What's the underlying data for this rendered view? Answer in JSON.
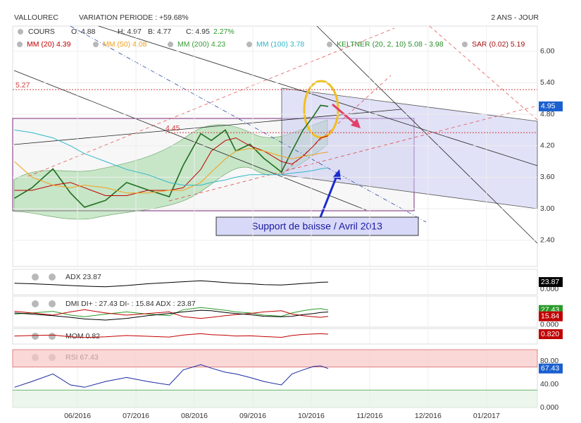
{
  "header": {
    "title": "VALLOUREC",
    "variation": "VARIATION PERIODE : +59.68%",
    "period": "2 ANS - JOUR"
  },
  "legend": {
    "cours": "COURS",
    "quotes": [
      "O: 4.88",
      "H: 4.97",
      "B: 4.77",
      "C: 4.95"
    ],
    "change": "2.27%",
    "indicators": [
      {
        "text": "MM (20) 4.39",
        "color": "#c00000"
      },
      {
        "text": "MM (50) 4.08",
        "color": "#f0a020"
      },
      {
        "text": "MM (200) 4.23",
        "color": "#3a9a3a"
      },
      {
        "text": "MM (100) 3.78",
        "color": "#30b8c8"
      },
      {
        "text": "KELTNER (20, 2, 10) 5.08 - 3.98",
        "color": "#2a8a2a"
      },
      {
        "text": "SAR (0.02) 5.19",
        "color": "#a01010"
      }
    ]
  },
  "annotation": "Support de baisse / Avril 2013",
  "chart_data": [
    {
      "type": "line",
      "x": [
        -0.08,
        0.22,
        0.58,
        0.88,
        1.12,
        1.48,
        1.84,
        2.2,
        2.57,
        2.81,
        3.11,
        3.29,
        3.53,
        3.71,
        3.95,
        4.19,
        4.49,
        4.67,
        4.86,
        5.04,
        5.16,
        5.29
      ],
      "series": [
        {
          "color": "#1f6e1f",
          "values": [
            3.2,
            3.4,
            3.76,
            3.3,
            3.03,
            3.16,
            3.5,
            3.36,
            3.23,
            3.83,
            4.43,
            4.3,
            4.5,
            4.1,
            4.23,
            3.96,
            3.7,
            4.1,
            4.5,
            4.77,
            4.97,
            4.95
          ]
        },
        {
          "color": "#c00000",
          "values": [
            3.35,
            3.35,
            3.45,
            3.5,
            3.4,
            3.25,
            3.25,
            3.35,
            3.35,
            3.4,
            3.75,
            4.1,
            4.3,
            4.35,
            4.2,
            4.1,
            3.9,
            3.85,
            4.0,
            4.2,
            4.35,
            4.39
          ]
        },
        {
          "color": "#f0a020",
          "values": [
            3.9,
            3.6,
            3.45,
            3.4,
            3.45,
            3.4,
            3.3,
            3.3,
            3.35,
            3.35,
            3.5,
            3.7,
            3.95,
            4.1,
            4.15,
            4.1,
            4.0,
            3.95,
            4.0,
            4.03,
            4.06,
            4.08
          ]
        },
        {
          "color": "#30b8c8",
          "values": [
            4.5,
            4.45,
            4.35,
            4.2,
            4.05,
            3.9,
            3.75,
            3.65,
            3.5,
            3.45,
            3.45,
            3.5,
            3.55,
            3.6,
            3.65,
            3.65,
            3.65,
            3.68,
            3.7,
            3.73,
            3.76,
            3.78
          ]
        }
      ],
      "xlim": [
        -0.11,
        8.87
      ],
      "xticks": [
        {
          "value": 1,
          "label": "06/2016"
        },
        {
          "value": 2,
          "label": "07/2016"
        },
        {
          "value": 3,
          "label": "08/2016"
        },
        {
          "value": 4,
          "label": "09/2016"
        },
        {
          "value": 5,
          "label": "10/2016"
        },
        {
          "value": 6,
          "label": "11/2016"
        },
        {
          "value": 7,
          "label": "12/2016"
        },
        {
          "value": 8,
          "label": "01/2017"
        }
      ],
      "ylim": [
        1.9,
        6.48
      ],
      "yticks": [
        {
          "value": 6,
          "label": "6.00"
        },
        {
          "value": 5.4,
          "label": "5.40"
        },
        {
          "value": 4.8,
          "label": "4.80"
        },
        {
          "value": 4.2,
          "label": "4.20"
        },
        {
          "value": 3.6,
          "label": "3.60"
        },
        {
          "value": 3,
          "label": "3.00"
        },
        {
          "value": 2.4,
          "label": "2.40"
        }
      ],
      "levels": [
        5.27,
        4.45
      ],
      "last_value": 4.95,
      "last_color": "#1a5fd0",
      "grid": true
    },
    {
      "type": "line",
      "title": "ADX 23.87",
      "series": [
        {
          "color": "#000000",
          "values": [
            20,
            18,
            15,
            12,
            10,
            8,
            12,
            18,
            22,
            25,
            28,
            26,
            22,
            20,
            18,
            15,
            14,
            16,
            19,
            21,
            23,
            23.87
          ]
        }
      ],
      "ylim": [
        -19,
        67
      ],
      "yticks": [
        {
          "value": 0,
          "label": "0.000"
        }
      ],
      "last_value": 23.87,
      "last_color": "#000000"
    },
    {
      "type": "line",
      "title": "DMI DI+ : 27.43 DI- : 15.84 ADX : 23.87",
      "series": [
        {
          "color": "#2a9a2a",
          "values": [
            20,
            22,
            25,
            18,
            15,
            20,
            24,
            20,
            17,
            28,
            32,
            30,
            27,
            24,
            22,
            18,
            16,
            22,
            26,
            29,
            30,
            27.43
          ]
        },
        {
          "color": "#c00000",
          "values": [
            25,
            22,
            18,
            24,
            28,
            22,
            18,
            21,
            24,
            15,
            12,
            14,
            17,
            19,
            21,
            24,
            26,
            20,
            17,
            15,
            14,
            15.84
          ]
        },
        {
          "color": "#000000",
          "values": [
            22,
            20,
            17,
            14,
            11,
            9,
            12,
            17,
            21,
            24,
            27,
            26,
            23,
            21,
            19,
            16,
            15,
            16,
            19,
            21,
            23,
            23.87
          ]
        }
      ],
      "ylim": [
        -4,
        53
      ],
      "yticks": [
        {
          "value": 0,
          "label": "0.000"
        }
      ],
      "last_values": [
        27.43,
        15.84
      ],
      "last_colors": [
        "#2a9a2a",
        "#c00000"
      ]
    },
    {
      "type": "line",
      "title": "MOM 0.82",
      "series": [
        {
          "color": "#c00000",
          "values": [
            0.1,
            0.3,
            0.5,
            -0.2,
            -0.5,
            -0.2,
            0.3,
            0,
            -0.3,
            0.5,
            1,
            0.6,
            0.4,
            0.1,
            0.2,
            -0.1,
            -0.4,
            0.3,
            0.7,
            0.9,
            1,
            0.82
          ]
        }
      ],
      "ylim": [
        -3,
        3
      ],
      "yticks": [
        {
          "value": 0,
          "label": "0.000"
        }
      ],
      "last_value": {
        "value": 0.82,
        "label": "0.820"
      },
      "last_color": "#c00000"
    },
    {
      "type": "line",
      "title": "RSI 67.43",
      "series": [
        {
          "color": "#1a2aa0",
          "values": [
            35,
            45,
            58,
            39,
            35,
            45,
            52,
            45,
            39,
            65,
            74,
            68,
            61,
            58,
            52,
            45,
            39,
            58,
            65,
            71,
            72,
            67.43
          ]
        }
      ],
      "ylim": [
        0,
        100
      ],
      "yticks": [
        {
          "value": 0,
          "label": "0.000"
        },
        {
          "value": 40,
          "label": "40.00"
        },
        {
          "value": 80,
          "label": "80.00"
        }
      ],
      "band": [
        70,
        100
      ],
      "hline": 30,
      "last_value": 67.43,
      "last_color": "#1a5fd0"
    }
  ]
}
